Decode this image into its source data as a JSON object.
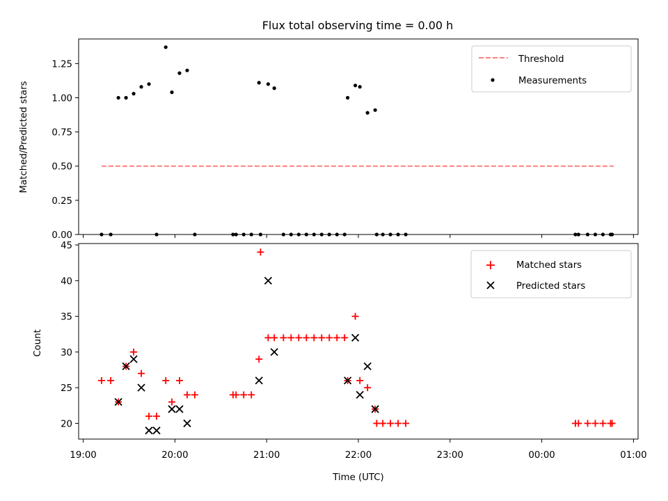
{
  "figure": {
    "title": "Flux total observing time = 0.00 h"
  },
  "chart_data": [
    {
      "type": "scatter",
      "title": "Flux total observing time = 0.00 h",
      "xlabel": "",
      "ylabel": "Matched/Predicted stars",
      "xlim": [
        "2000-01-01 18:57",
        "2000-01-02 01:03"
      ],
      "ylim": [
        0,
        1.43
      ],
      "y_ticks": [
        "0.00",
        "0.25",
        "0.50",
        "0.75",
        "1.00",
        "1.25"
      ],
      "y_tick_values": [
        0,
        0.25,
        0.5,
        0.75,
        1.0,
        1.25
      ],
      "legend_position": "top-right",
      "grid": false,
      "threshold": {
        "name": "Threshold",
        "value": 0.5,
        "x_start": "19:12",
        "x_end": "00:47",
        "color": "#ff7f7f",
        "style": "dashed"
      },
      "series": [
        {
          "name": "Measurements",
          "marker": "dot",
          "color": "#000000",
          "x": [
            "19:12",
            "19:18",
            "19:23",
            "19:28",
            "19:33",
            "19:38",
            "19:43",
            "19:48",
            "19:54",
            "19:58",
            "20:03",
            "20:08",
            "20:13",
            "20:38",
            "20:40",
            "20:45",
            "20:50",
            "20:55",
            "20:56",
            "21:01",
            "21:05",
            "21:11",
            "21:16",
            "21:21",
            "21:26",
            "21:31",
            "21:36",
            "21:41",
            "21:46",
            "21:51",
            "21:53",
            "21:58",
            "22:01",
            "22:06",
            "22:11",
            "22:12",
            "22:16",
            "22:21",
            "22:26",
            "22:31",
            "00:22",
            "00:24",
            "00:30",
            "00:35",
            "00:40",
            "00:45",
            "00:46"
          ],
          "y": [
            0,
            0,
            1.0,
            1.0,
            1.03,
            1.08,
            1.1,
            0,
            1.37,
            1.04,
            1.18,
            1.2,
            0,
            0,
            0,
            0,
            0,
            1.11,
            0,
            1.1,
            1.07,
            0,
            0,
            0,
            0,
            0,
            0,
            0,
            0,
            0,
            1.0,
            1.09,
            1.08,
            0.89,
            0.91,
            0,
            0,
            0,
            0,
            0,
            0,
            0,
            0,
            0,
            0,
            0,
            0
          ]
        }
      ]
    },
    {
      "type": "scatter",
      "xlabel": "Time (UTC)",
      "ylabel": "Count",
      "xlim": [
        "2000-01-01 18:57",
        "2000-01-02 01:03"
      ],
      "ylim": [
        17.8,
        45.2
      ],
      "x_ticks": [
        "19:00",
        "20:00",
        "21:00",
        "22:00",
        "23:00",
        "00:00",
        "01:00"
      ],
      "y_ticks": [
        "20",
        "25",
        "30",
        "35",
        "40",
        "45"
      ],
      "y_tick_values": [
        20,
        25,
        30,
        35,
        40,
        45
      ],
      "legend_position": "top-right",
      "grid": false,
      "series": [
        {
          "name": "Matched stars",
          "marker": "plus",
          "color": "#ff0000",
          "x": [
            "19:12",
            "19:18",
            "19:23",
            "19:28",
            "19:33",
            "19:38",
            "19:43",
            "19:48",
            "19:54",
            "19:58",
            "20:03",
            "20:08",
            "20:13",
            "20:38",
            "20:40",
            "20:45",
            "20:50",
            "20:55",
            "20:56",
            "21:01",
            "21:05",
            "21:11",
            "21:16",
            "21:21",
            "21:26",
            "21:31",
            "21:36",
            "21:41",
            "21:46",
            "21:51",
            "21:53",
            "21:58",
            "22:01",
            "22:06",
            "22:11",
            "22:12",
            "22:16",
            "22:21",
            "22:26",
            "22:31",
            "00:22",
            "00:24",
            "00:30",
            "00:35",
            "00:40",
            "00:45",
            "00:46"
          ],
          "y": [
            26,
            26,
            23,
            28,
            30,
            27,
            21,
            21,
            26,
            23,
            26,
            24,
            24,
            24,
            24,
            24,
            24,
            29,
            44,
            32,
            32,
            32,
            32,
            32,
            32,
            32,
            32,
            32,
            32,
            32,
            26,
            35,
            26,
            25,
            22,
            20,
            20,
            20,
            20,
            20,
            20,
            20,
            20,
            20,
            20,
            20,
            20
          ]
        },
        {
          "name": "Predicted stars",
          "marker": "x",
          "color": "#000000",
          "x": [
            "19:23",
            "19:28",
            "19:33",
            "19:38",
            "19:43",
            "19:48",
            "19:58",
            "20:03",
            "20:08",
            "20:55",
            "21:01",
            "21:05",
            "21:53",
            "21:58",
            "22:01",
            "22:06",
            "22:11"
          ],
          "y": [
            23,
            28,
            29,
            25,
            19,
            19,
            22,
            22,
            20,
            26,
            40,
            30,
            26,
            32,
            24,
            28,
            22
          ]
        }
      ]
    }
  ]
}
